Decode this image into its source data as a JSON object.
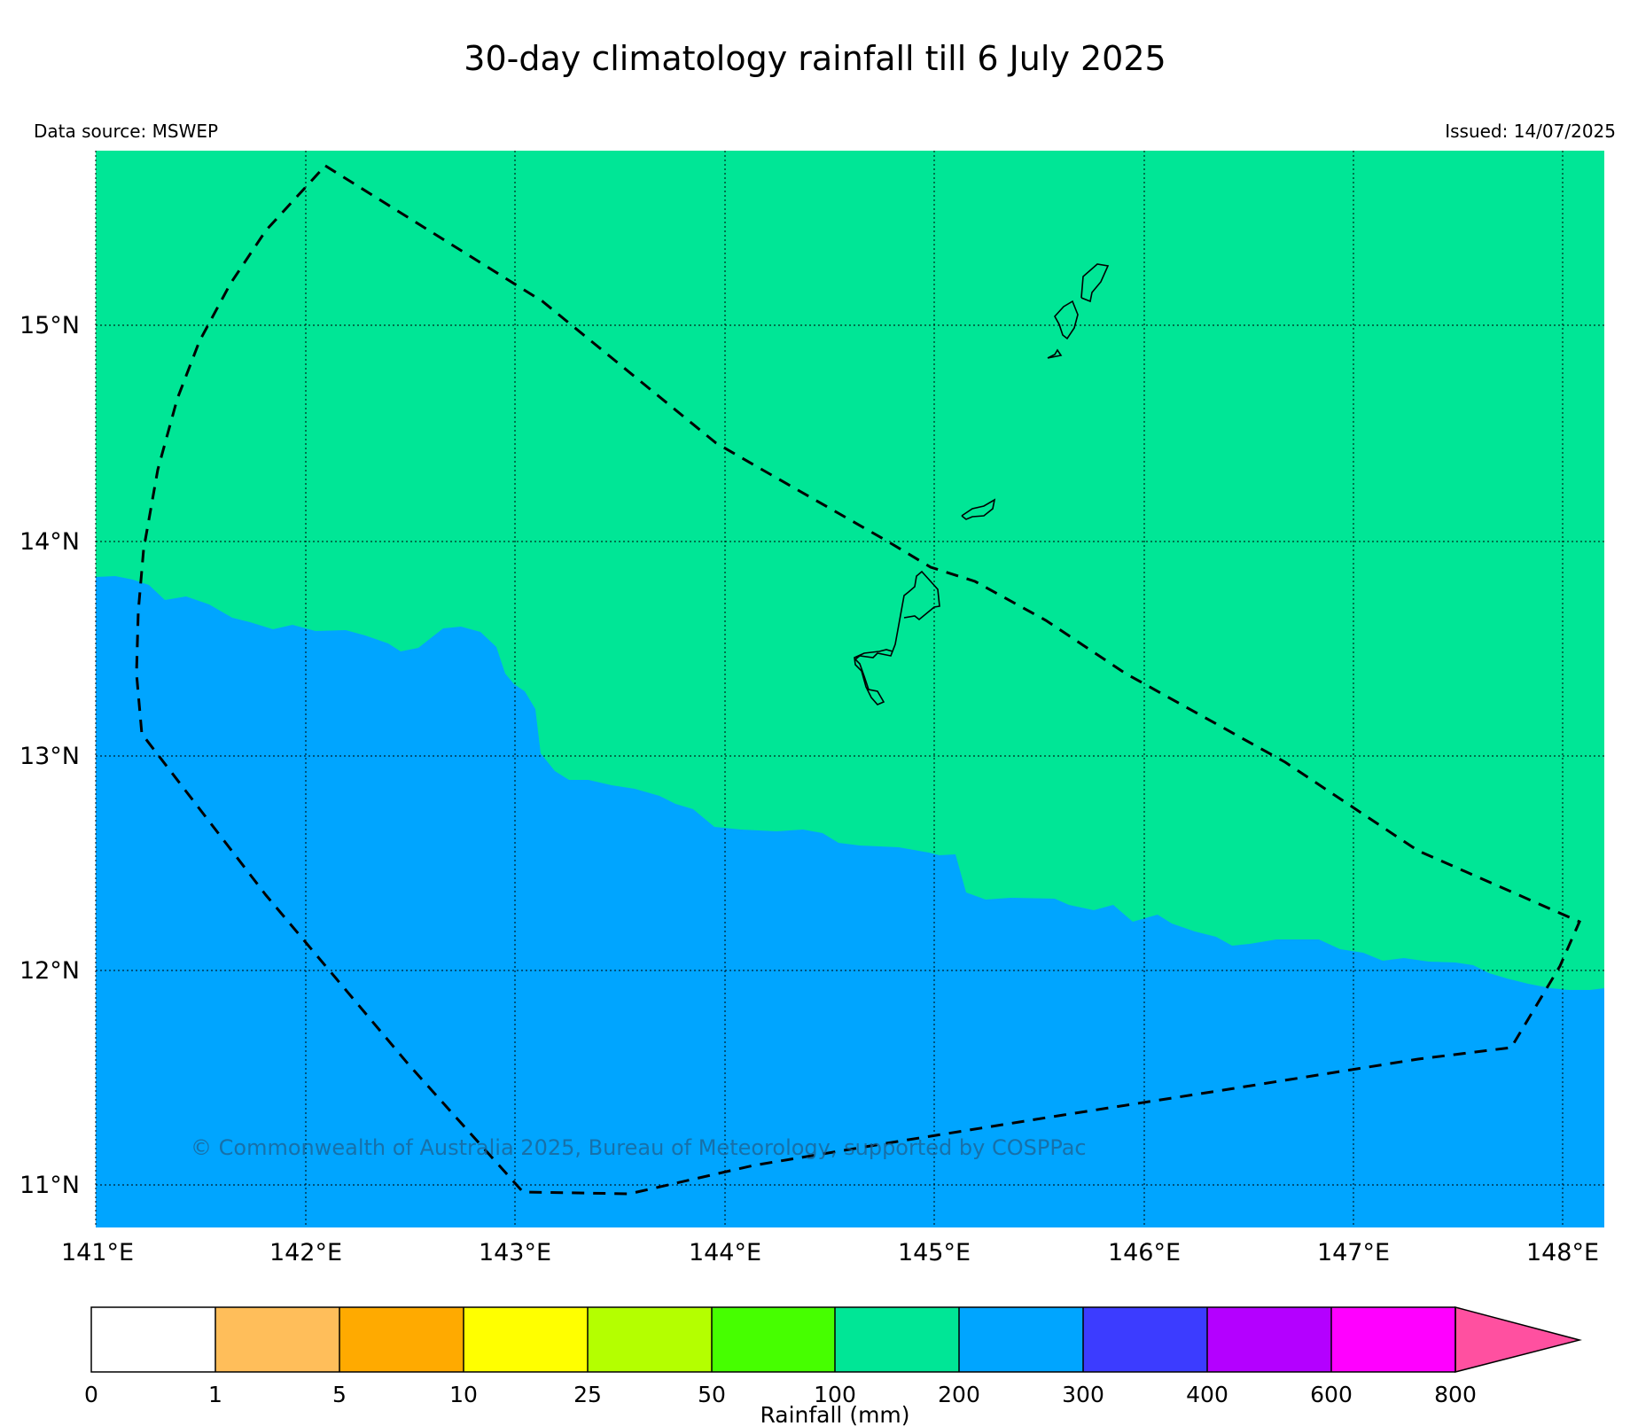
{
  "title": "30-day climatology rainfall till 6 July 2025",
  "data_source": "Data source: MSWEP",
  "issued": "Issued: 14/07/2025",
  "copyright": "© Commonwealth of Australia 2025, Bureau of Meteorology, supported by COSPPac",
  "map": {
    "lon_range": [
      141.0,
      148.2
    ],
    "lat_range": [
      10.8,
      15.8
    ],
    "lon_ticks": [
      "141°E",
      "142°E",
      "143°E",
      "144°E",
      "145°E",
      "146°E",
      "147°E",
      "148°E"
    ],
    "lat_ticks": [
      "11°N",
      "12°N",
      "13°N",
      "14°N",
      "15°N"
    ],
    "grid": "dotted",
    "region_fill": {
      "north": "#00e696",
      "south": "#00a5ff"
    }
  },
  "colorbar": {
    "label": "Rainfall (mm)",
    "ticks": [
      "0",
      "1",
      "5",
      "10",
      "25",
      "50",
      "100",
      "200",
      "300",
      "400",
      "600",
      "800"
    ],
    "colors": [
      "#ffffff",
      "#ffbe5a",
      "#ffaa00",
      "#ffff00",
      "#b4ff00",
      "#46ff00",
      "#00e696",
      "#00a5ff",
      "#3c3cff",
      "#b400ff",
      "#ff00ff"
    ],
    "extend_color": "#ff50a0"
  }
}
